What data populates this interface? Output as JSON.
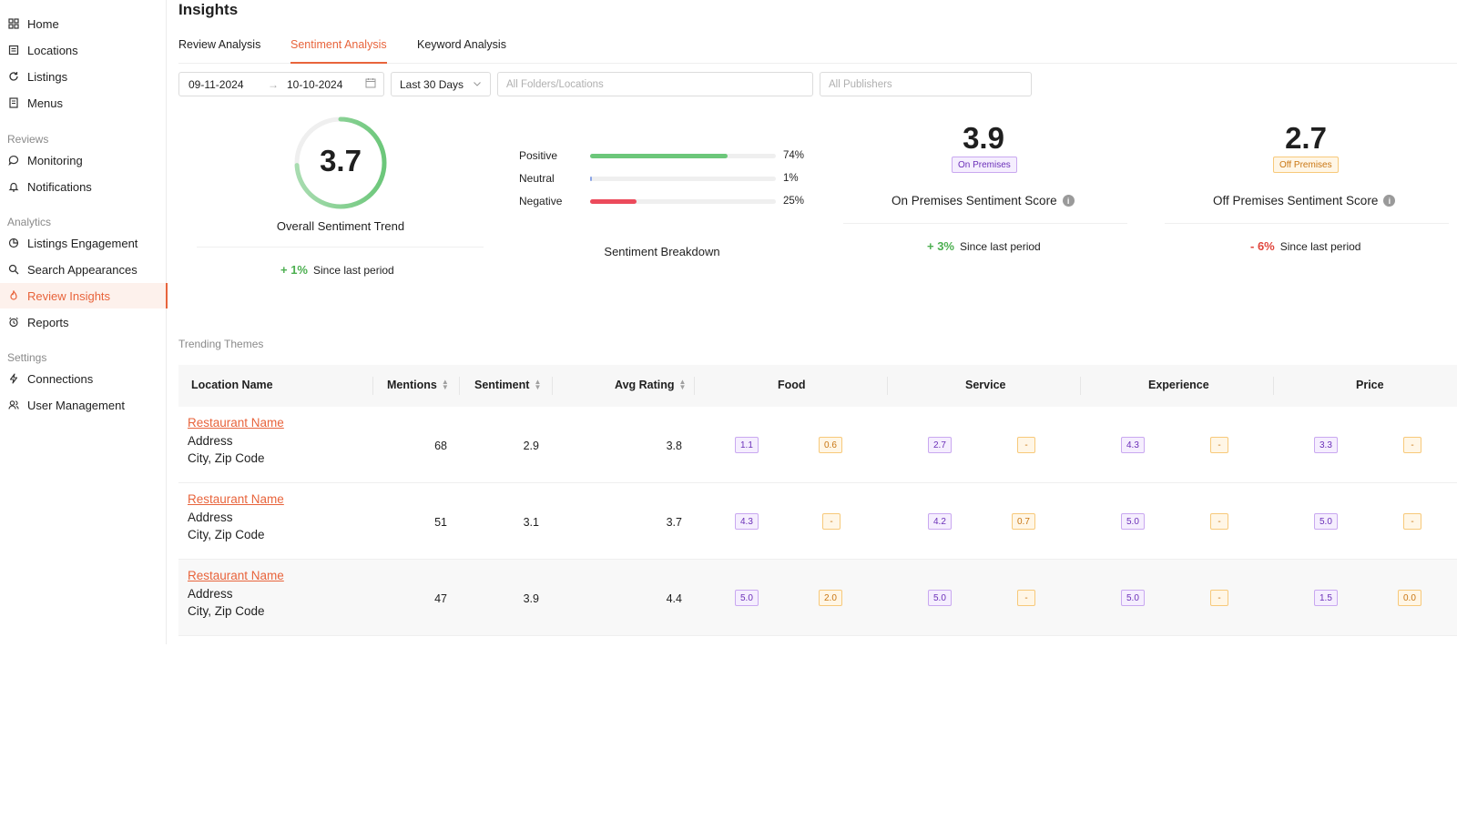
{
  "sidebar": {
    "items": [
      {
        "label": "Home",
        "icon": "grid-icon"
      },
      {
        "label": "Locations",
        "icon": "building-icon"
      },
      {
        "label": "Listings",
        "icon": "refresh-icon"
      },
      {
        "label": "Menus",
        "icon": "menu-book-icon"
      }
    ],
    "groups": {
      "reviews": {
        "label": "Reviews",
        "items": [
          {
            "label": "Monitoring",
            "icon": "chat-icon"
          },
          {
            "label": "Notifications",
            "icon": "bell-icon"
          }
        ]
      },
      "analytics": {
        "label": "Analytics",
        "items": [
          {
            "label": "Listings Engagement",
            "icon": "pie-icon"
          },
          {
            "label": "Search Appearances",
            "icon": "search-icon"
          },
          {
            "label": "Review Insights",
            "icon": "flame-icon",
            "active": true
          },
          {
            "label": "Reports",
            "icon": "alarm-icon"
          }
        ]
      },
      "settings": {
        "label": "Settings",
        "items": [
          {
            "label": "Connections",
            "icon": "bolt-icon"
          },
          {
            "label": "User Management",
            "icon": "users-icon"
          }
        ]
      }
    }
  },
  "header": {
    "title": "Insights",
    "tabs": [
      {
        "label": "Review Analysis"
      },
      {
        "label": "Sentiment Analysis",
        "active": true
      },
      {
        "label": "Keyword Analysis"
      }
    ]
  },
  "filters": {
    "start_date": "09-11-2024",
    "end_date": "10-10-2024",
    "period": "Last 30 Days",
    "locations_placeholder": "All Folders/Locations",
    "publishers_placeholder": "All Publishers"
  },
  "overall": {
    "value": "3.7",
    "fraction": 0.74,
    "title": "Overall Sentiment Trend",
    "delta": "+ 1%",
    "delta_label": "Since last period"
  },
  "breakdown": {
    "title": "Sentiment Breakdown",
    "rows": [
      {
        "label": "Positive",
        "pct": "74%",
        "fraction": 0.74,
        "color": "#6cc77a"
      },
      {
        "label": "Neutral",
        "pct": "1%",
        "fraction": 0.01,
        "color": "#8aa4e6"
      },
      {
        "label": "Negative",
        "pct": "25%",
        "fraction": 0.25,
        "color": "#ec4a5b"
      }
    ]
  },
  "on_premises": {
    "score": "3.9",
    "badge": "On Premises",
    "title": "On Premises Sentiment Score",
    "delta": "+ 3%",
    "delta_label": "Since last period"
  },
  "off_premises": {
    "score": "2.7",
    "badge": "Off Premises",
    "title": "Off Premises Sentiment Score",
    "delta": "- 6%",
    "delta_label": "Since last period"
  },
  "table": {
    "section_label": "Trending Themes",
    "headers": {
      "location": "Location Name",
      "mentions": "Mentions",
      "sentiment": "Sentiment",
      "avg_rating": "Avg Rating",
      "food": "Food",
      "service": "Service",
      "experience": "Experience",
      "price": "Price"
    },
    "rows": [
      {
        "name": "Restaurant Name",
        "address": "Address",
        "city": "City, Zip Code",
        "mentions": "68",
        "sentiment": "2.9",
        "avg_rating": "3.8",
        "food": [
          "1.1",
          "0.6"
        ],
        "service": [
          "2.7",
          "-"
        ],
        "experience": [
          "4.3",
          "-"
        ],
        "price": [
          "3.3",
          "-"
        ]
      },
      {
        "name": "Restaurant Name",
        "address": "Address",
        "city": "City, Zip Code",
        "mentions": "51",
        "sentiment": "3.1",
        "avg_rating": "3.7",
        "food": [
          "4.3",
          "-"
        ],
        "service": [
          "4.2",
          "0.7"
        ],
        "experience": [
          "5.0",
          "-"
        ],
        "price": [
          "5.0",
          "-"
        ]
      },
      {
        "name": "Restaurant Name",
        "address": "Address",
        "city": "City, Zip Code",
        "mentions": "47",
        "sentiment": "3.9",
        "avg_rating": "4.4",
        "food": [
          "5.0",
          "2.0"
        ],
        "service": [
          "5.0",
          "-"
        ],
        "experience": [
          "5.0",
          "-"
        ],
        "price": [
          "1.5",
          "0.0"
        ]
      }
    ]
  },
  "colors": {
    "accent": "#e8643c",
    "positive": "#4caf50",
    "negative": "#e0463d",
    "on_premises_badge": "#6b2fb8",
    "off_premises_badge": "#c97612"
  }
}
